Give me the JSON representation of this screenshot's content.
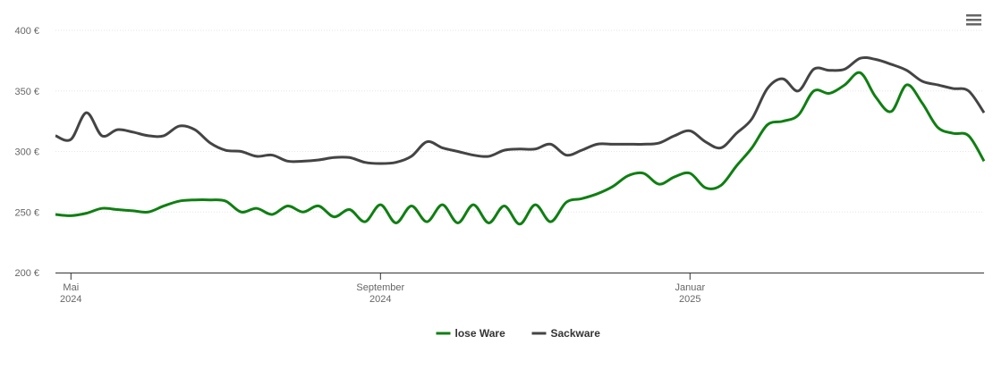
{
  "chart_data": {
    "type": "line",
    "categories": [
      null,
      "Mai 2024",
      null,
      null,
      null,
      null,
      null,
      null,
      null,
      null,
      null,
      null,
      null,
      null,
      null,
      null,
      null,
      null,
      null,
      null,
      null,
      "September 2024",
      null,
      null,
      null,
      null,
      null,
      null,
      null,
      null,
      null,
      null,
      null,
      null,
      null,
      null,
      null,
      null,
      null,
      null,
      null,
      "Januar 2025",
      null,
      null,
      null,
      null,
      null,
      null,
      null,
      null,
      null,
      null,
      null,
      null,
      null,
      null,
      null,
      null,
      null,
      null,
      null
    ],
    "series": [
      {
        "name": "lose Ware",
        "color": "#0f7f12",
        "values": [
          248,
          247,
          249,
          253,
          252,
          251,
          250,
          255,
          259,
          260,
          260,
          259,
          250,
          253,
          248,
          255,
          250,
          255,
          246,
          252,
          242,
          256,
          241,
          255,
          242,
          256,
          241,
          256,
          241,
          255,
          240,
          256,
          242,
          258,
          261,
          265,
          271,
          280,
          282,
          273,
          279,
          282,
          270,
          272,
          288,
          303,
          322,
          325,
          330,
          350,
          348,
          355,
          365,
          345,
          333,
          355,
          340,
          320,
          315,
          313,
          292
        ]
      },
      {
        "name": "Sackware",
        "color": "#444444",
        "values": [
          313,
          310,
          332,
          313,
          318,
          316,
          313,
          313,
          321,
          318,
          307,
          301,
          300,
          296,
          297,
          292,
          292,
          293,
          295,
          295,
          291,
          290,
          291,
          296,
          308,
          303,
          300,
          297,
          296,
          301,
          302,
          302,
          306,
          297,
          301,
          306,
          306,
          306,
          306,
          307,
          313,
          317,
          308,
          303,
          315,
          327,
          352,
          360,
          350,
          368,
          367,
          368,
          377,
          376,
          372,
          367,
          358,
          355,
          352,
          350,
          332
        ]
      }
    ],
    "ylim": [
      200,
      400
    ],
    "yticks": [
      {
        "value": 200,
        "label": "200 €"
      },
      {
        "value": 250,
        "label": "250 €"
      },
      {
        "value": 300,
        "label": "300 €"
      },
      {
        "value": 350,
        "label": "350 €"
      },
      {
        "value": 400,
        "label": "400 €"
      }
    ],
    "grid": true,
    "legend": "bottom"
  }
}
